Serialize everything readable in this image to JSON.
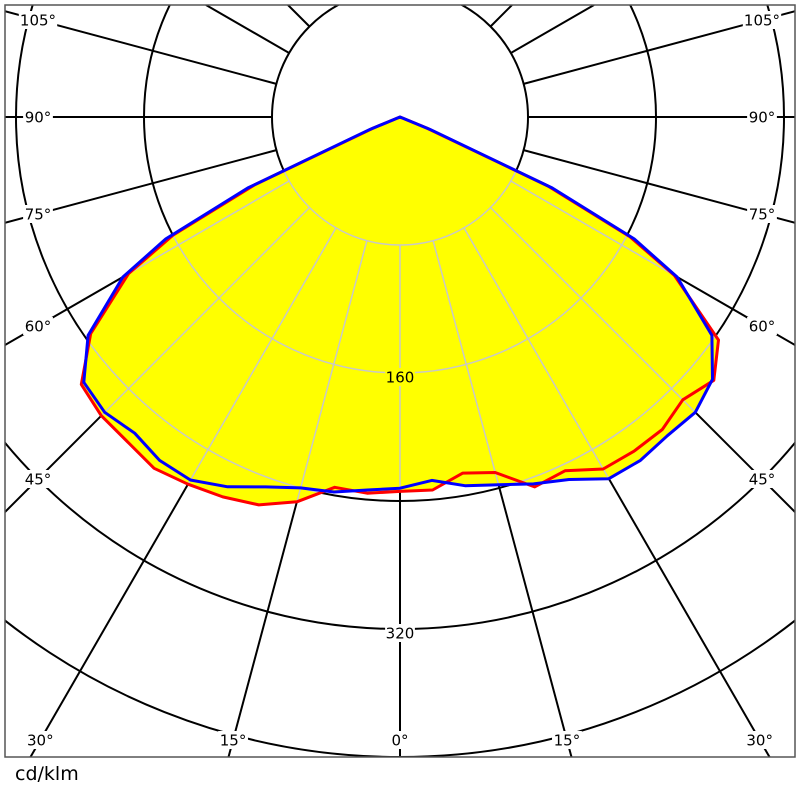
{
  "chart_data": {
    "type": "polar",
    "unit_label": "cd/klm",
    "radial_tick_labels": [
      "160",
      "320"
    ],
    "radial_grid_step": 80,
    "angle_grid_step_deg": 15,
    "angle_labels": [
      "0°",
      "15°",
      "30°",
      "45°",
      "60°",
      "75°",
      "90°",
      "105°"
    ],
    "fill_color": "#ffff00",
    "angles_deg": [
      0,
      5,
      10,
      15,
      20,
      25,
      30,
      35,
      40,
      45,
      50,
      55,
      60,
      62.5,
      65,
      67.5,
      70,
      75,
      80,
      85,
      90
    ],
    "series": [
      {
        "color": "#ff0000",
        "left": [
          234,
          236,
          235,
          249,
          258,
          262,
          265,
          268,
          265,
          264,
          260,
          236,
          196,
          160,
          100,
          18,
          0,
          0,
          0,
          0,
          0
        ],
        "right": [
          232,
          234,
          226,
          230,
          246,
          244,
          254,
          255,
          255,
          250,
          256,
          243,
          198,
          162,
          102,
          18,
          0,
          0,
          0,
          0,
          0
        ]
      },
      {
        "color": "#0000ff",
        "left": [
          232,
          234,
          238,
          240,
          246,
          255,
          262,
          262,
          258,
          261,
          258,
          238,
          200,
          165,
          105,
          20,
          0,
          0,
          0,
          0,
          0
        ],
        "right": [
          230,
          228,
          234,
          238,
          244,
          250,
          261,
          262,
          260,
          261,
          255,
          238,
          200,
          165,
          105,
          20,
          0,
          0,
          0,
          0,
          0
        ]
      }
    ]
  }
}
